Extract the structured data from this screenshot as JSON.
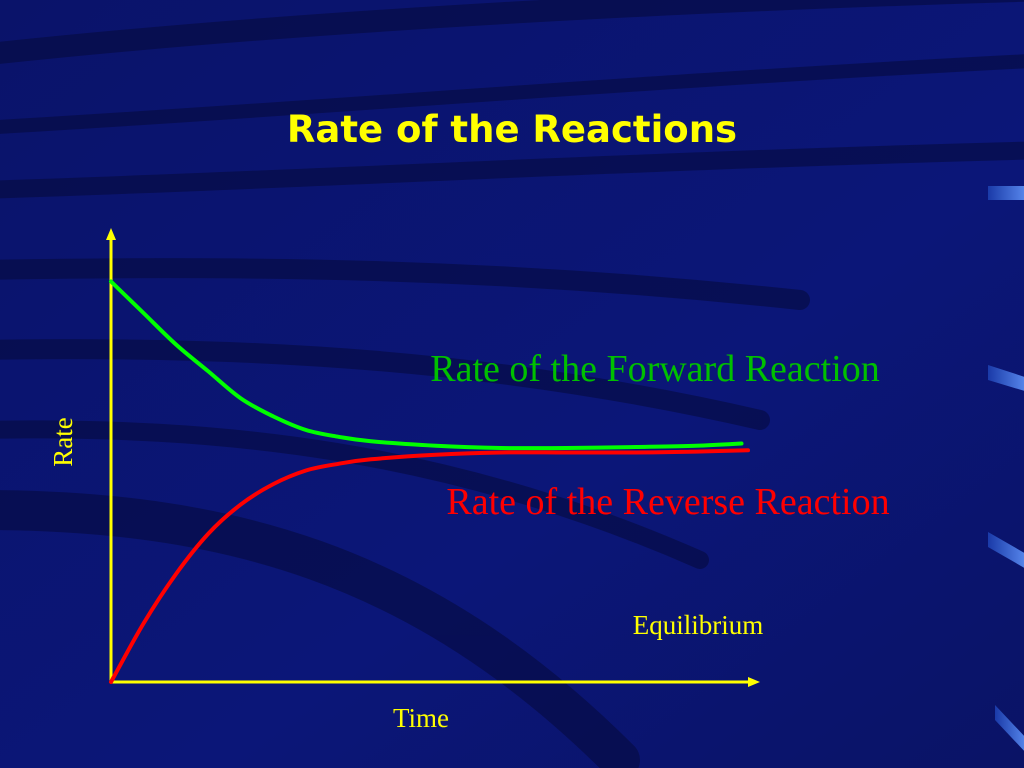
{
  "slide": {
    "title": "Rate of the Reactions"
  },
  "colors": {
    "background": "#0a1470",
    "title": "#ffff00",
    "axes": "#ffff00",
    "forward": "#00ff00",
    "reverse": "#ff0000",
    "labels": "#ffff00"
  },
  "chart_data": {
    "type": "line",
    "title": "Rate of the Reactions",
    "xlabel": "Time",
    "ylabel": "Rate",
    "ticks": "none",
    "grid": false,
    "xlim": [
      0,
      10
    ],
    "ylim": [
      0,
      10
    ],
    "series": [
      {
        "name": "Rate of the Forward Reaction",
        "color": "#00ff00",
        "x": [
          0,
          0.5,
          1,
          1.5,
          2,
          2.5,
          3,
          3.5,
          4,
          5,
          6,
          7,
          8,
          9,
          9.7
        ],
        "y": [
          8.9,
          8.2,
          7.5,
          6.9,
          6.3,
          5.9,
          5.6,
          5.45,
          5.35,
          5.25,
          5.2,
          5.2,
          5.22,
          5.25,
          5.3
        ]
      },
      {
        "name": "Rate of the Reverse Reaction",
        "color": "#ff0000",
        "x": [
          0,
          0.5,
          1,
          1.5,
          2,
          2.5,
          3,
          3.5,
          4,
          5,
          6,
          7,
          8,
          9,
          9.8
        ],
        "y": [
          0,
          1.3,
          2.4,
          3.3,
          3.95,
          4.4,
          4.7,
          4.85,
          4.95,
          5.05,
          5.1,
          5.1,
          5.1,
          5.12,
          5.15
        ]
      }
    ],
    "annotations": [
      "Equilibrium"
    ]
  }
}
